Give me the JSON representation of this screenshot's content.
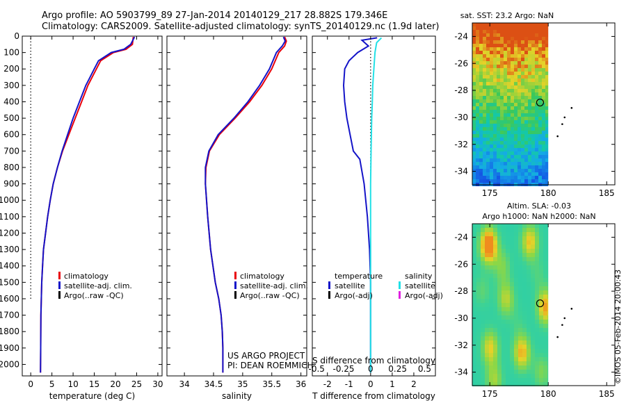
{
  "header": {
    "line1": "Argo profile: AO 5903799_89 27-Jan-2014 20140129_217 28.882S 179.346E",
    "line2": "Climatology: CARS2009. Satellite-adjusted climatology: synTS_20140129.nc (1.9d later)"
  },
  "colors": {
    "climatology": "#e8000b",
    "satellite": "#1414c8",
    "argo": "#000000",
    "sal_satellite": "#22e0e6",
    "sal_argo": "#e020e0"
  },
  "chart_data": [
    {
      "type": "line",
      "panel": "temperature",
      "xlabel": "temperature (deg C)",
      "ylabel": "",
      "xlim": [
        -2,
        31
      ],
      "ylim": [
        2070,
        0
      ],
      "xticks": [
        "0",
        "5",
        "10",
        "15",
        "20",
        "25",
        "30"
      ],
      "xtick_values": [
        0,
        5,
        10,
        15,
        20,
        25,
        30
      ],
      "yticks": [
        "0",
        "100",
        "200",
        "300",
        "400",
        "500",
        "600",
        "700",
        "800",
        "900",
        "1000",
        "1100",
        "1200",
        "1300",
        "1400",
        "1500",
        "1600",
        "1700",
        "1800",
        "1900",
        "2000"
      ],
      "ytick_values": [
        0,
        100,
        200,
        300,
        400,
        500,
        600,
        700,
        800,
        900,
        1000,
        1100,
        1200,
        1300,
        1400,
        1500,
        1600,
        1700,
        1800,
        1900,
        2000
      ],
      "legend": [
        "climatology",
        "satellite-adj. clim.",
        "Argo(..raw -QC)"
      ],
      "zero_line": true,
      "series": [
        {
          "name": "climatology",
          "color": "#e8000b",
          "x": [
            24.2,
            24.0,
            22.5,
            19.5,
            16.5,
            15.5,
            14.5,
            13.5,
            12.0,
            10.5,
            9.0,
            7.5,
            6.3,
            5.3,
            4.6,
            4.0,
            3.5,
            3.0,
            2.8,
            2.6,
            2.5,
            2.4,
            2.35,
            2.3
          ],
          "y": [
            5,
            50,
            80,
            100,
            150,
            200,
            250,
            300,
            400,
            500,
            600,
            700,
            800,
            900,
            1000,
            1100,
            1200,
            1300,
            1400,
            1500,
            1600,
            1700,
            1900,
            2050
          ]
        },
        {
          "name": "satellite-adj. clim.",
          "color": "#1414c8",
          "x": [
            24.5,
            23.6,
            22.0,
            19.0,
            16.0,
            15.0,
            14.0,
            13.0,
            11.5,
            10.0,
            8.7,
            7.4,
            6.3,
            5.3,
            4.6,
            4.0,
            3.5,
            3.0,
            2.8,
            2.6,
            2.5,
            2.4,
            2.35,
            2.3
          ],
          "y": [
            5,
            50,
            80,
            100,
            150,
            200,
            250,
            300,
            400,
            500,
            600,
            700,
            800,
            900,
            1000,
            1100,
            1200,
            1300,
            1400,
            1500,
            1600,
            1700,
            1900,
            2050
          ]
        }
      ]
    },
    {
      "type": "line",
      "panel": "salinity",
      "xlabel": "salinity",
      "ylabel": "",
      "xlim": [
        33.7,
        36.1
      ],
      "ylim": [
        2070,
        0
      ],
      "xticks": [
        "34",
        "34.5",
        "35",
        "35.5",
        "36"
      ],
      "xtick_values": [
        34,
        34.5,
        35,
        35.5,
        36
      ],
      "legend": [
        "climatology",
        "satellite-adj. clim.",
        "Argo(..raw -QC)"
      ],
      "annotation": [
        "US ARGO PROJECT",
        "PI: DEAN ROEMMICH"
      ],
      "series": [
        {
          "name": "climatology",
          "color": "#e8000b",
          "x": [
            35.72,
            35.75,
            35.72,
            35.62,
            35.5,
            35.33,
            35.12,
            34.87,
            34.6,
            34.43,
            34.37,
            34.36,
            34.4,
            34.45,
            34.53,
            34.59,
            34.63,
            34.65,
            34.66,
            34.66
          ],
          "y": [
            5,
            30,
            60,
            100,
            200,
            300,
            400,
            500,
            600,
            700,
            800,
            900,
            1100,
            1300,
            1500,
            1600,
            1700,
            1800,
            1900,
            2050
          ]
        },
        {
          "name": "satellite-adj. clim.",
          "color": "#1414c8",
          "x": [
            35.7,
            35.73,
            35.68,
            35.58,
            35.46,
            35.29,
            35.09,
            34.85,
            34.58,
            34.42,
            34.36,
            34.36,
            34.4,
            34.45,
            34.53,
            34.59,
            34.63,
            34.65,
            34.66,
            34.66
          ],
          "y": [
            5,
            30,
            60,
            100,
            200,
            300,
            400,
            500,
            600,
            700,
            800,
            900,
            1100,
            1300,
            1500,
            1600,
            1700,
            1800,
            1900,
            2050
          ]
        }
      ]
    },
    {
      "type": "line",
      "panel": "difference",
      "xlabel": "T difference from climatology",
      "top_axis_label": "S difference from climatology",
      "xlim": [
        -2.7,
        3.0
      ],
      "ylim": [
        2070,
        0
      ],
      "xticks": [
        "-2",
        "-1",
        "0",
        "1",
        "2"
      ],
      "xtick_values": [
        -2,
        -1,
        0,
        1,
        2
      ],
      "top_ticks": [
        "-0.5",
        "-0.25",
        "0",
        "0.25",
        "0.5"
      ],
      "top_tick_values": [
        -0.5,
        -0.25,
        0,
        0.25,
        0.5
      ],
      "legend_headers": [
        "temperature",
        "salinity"
      ],
      "legend": [
        "satellite",
        "Argo(-adj)",
        "satellite",
        "Argo(-adj)"
      ],
      "zero_line": true,
      "series": [
        {
          "name": "satellite",
          "color": "#1414c8",
          "x": [
            0.3,
            -0.4,
            -0.1,
            -0.6,
            -1.0,
            -1.2,
            -1.25,
            -1.2,
            -1.1,
            -0.95,
            -0.8,
            -0.5,
            -0.3,
            -0.15,
            -0.05,
            0.0,
            0.0,
            0.0
          ],
          "y": [
            10,
            25,
            60,
            100,
            150,
            200,
            300,
            400,
            500,
            600,
            700,
            750,
            900,
            1100,
            1300,
            1500,
            1800,
            2050
          ]
        },
        {
          "name": "satellite",
          "color": "#22e0e6",
          "x": [
            0.5,
            0.28,
            0.2,
            0.15,
            0.1,
            0.08,
            0.05,
            0.02,
            0.0,
            0.0,
            0.0
          ],
          "y": [
            10,
            40,
            100,
            200,
            300,
            400,
            500,
            700,
            900,
            1200,
            2050
          ]
        }
      ]
    }
  ],
  "maps": [
    {
      "title": "sat. SST: 23.2  Argo: NaN",
      "xticks": [
        "175",
        "180",
        "185"
      ],
      "xtick_values": [
        175,
        180,
        185
      ],
      "yticks": [
        "-24",
        "-26",
        "-28",
        "-30",
        "-32",
        "-34"
      ],
      "ytick_values": [
        -24,
        -26,
        -28,
        -30,
        -32,
        -34
      ],
      "xlim": [
        173.5,
        185.7
      ],
      "ylim": [
        -35,
        -23
      ],
      "marker": [
        179.3,
        -28.9
      ],
      "track": [
        [
          182.0,
          -29.3
        ],
        [
          181.4,
          -30.0
        ],
        [
          181.2,
          -30.5
        ],
        [
          180.8,
          -31.4
        ]
      ]
    },
    {
      "title": "Altim. SLA: -0.03",
      "subtitle": "Argo h1000: NaN  h2000: NaN",
      "xticks": [
        "175",
        "180",
        "185"
      ],
      "xtick_values": [
        175,
        180,
        185
      ],
      "yticks": [
        "-24",
        "-26",
        "-28",
        "-30",
        "-32",
        "-34"
      ],
      "ytick_values": [
        -24,
        -26,
        -28,
        -30,
        -32,
        -34
      ],
      "xlim": [
        173.5,
        185.7
      ],
      "ylim": [
        -35,
        -23
      ],
      "marker": [
        179.3,
        -28.9
      ],
      "track": [
        [
          182.0,
          -29.3
        ],
        [
          181.4,
          -30.0
        ],
        [
          181.2,
          -30.5
        ],
        [
          180.8,
          -31.4
        ]
      ]
    }
  ],
  "footer": {
    "stamp": "©IMOS 05-Feb-2014 20:00:43"
  }
}
